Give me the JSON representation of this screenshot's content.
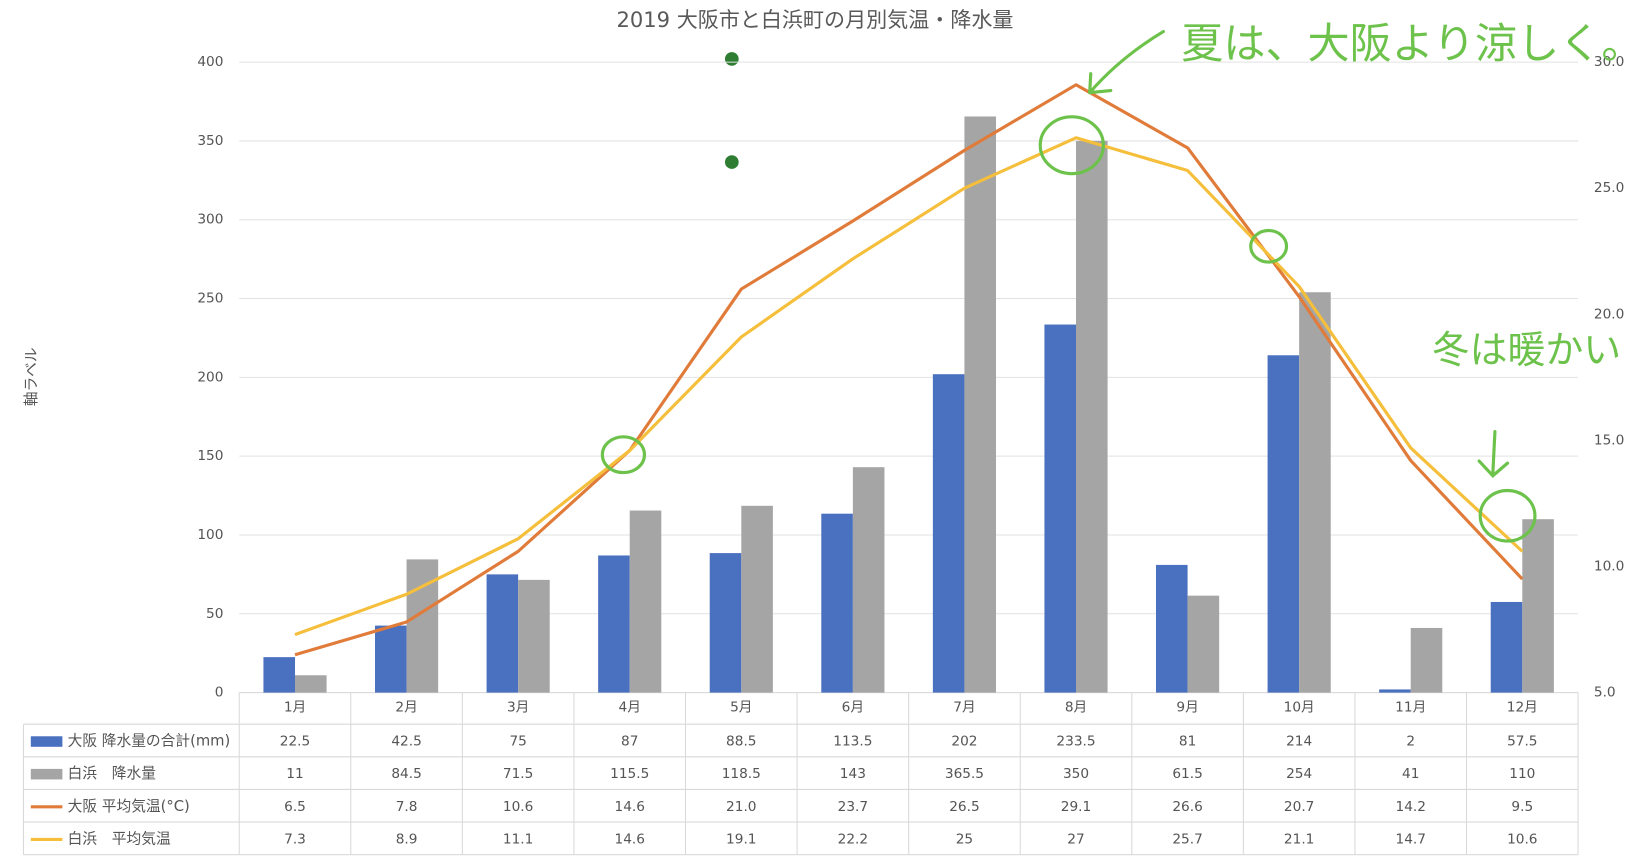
{
  "chart_data": {
    "type": "bar",
    "title": "2019 大阪市と白浜町の月別気温・降水量",
    "y_label": "軸ラベル",
    "categories": [
      "1月",
      "2月",
      "3月",
      "4月",
      "5月",
      "6月",
      "7月",
      "8月",
      "9月",
      "10月",
      "11月",
      "12月"
    ],
    "series": [
      {
        "name": "大阪 降水量の合計(mm)",
        "type": "bar",
        "color": "#4a70c0",
        "values": [
          22.5,
          42.5,
          75,
          87,
          88.5,
          113.5,
          202,
          233.5,
          81,
          214,
          2,
          57.5
        ]
      },
      {
        "name": "白浜　降水量",
        "type": "bar",
        "color": "#a5a5a5",
        "values": [
          11,
          84.5,
          71.5,
          115.5,
          118.5,
          143,
          365.5,
          350,
          61.5,
          254,
          41,
          110
        ]
      },
      {
        "name": "大阪 平均気温(°C)",
        "type": "line",
        "axis": "y2",
        "color": "#e07b39",
        "values": [
          6.5,
          7.8,
          10.6,
          14.6,
          21.0,
          23.7,
          26.5,
          29.1,
          26.6,
          20.7,
          14.2,
          9.5
        ],
        "value_labels": [
          "6.5",
          "7.8",
          "10.6",
          "14.6",
          "21.0",
          "23.7",
          "26.5",
          "29.1",
          "26.6",
          "20.7",
          "14.2",
          "9.5"
        ]
      },
      {
        "name": "白浜　平均気温",
        "type": "line",
        "axis": "y2",
        "color": "#f5bf3c",
        "values": [
          7.3,
          8.9,
          11.1,
          14.6,
          19.1,
          22.2,
          25,
          27,
          25.7,
          21.1,
          14.7,
          10.6
        ]
      }
    ],
    "ylim": [
      0,
      400
    ],
    "yticks": [
      0,
      50,
      100,
      150,
      200,
      250,
      300,
      350,
      400
    ],
    "y2lim": [
      5,
      30
    ],
    "y2ticks": [
      {
        "value": 5,
        "label": "5.0"
      },
      {
        "value": 10,
        "label": "10.0"
      },
      {
        "value": 15,
        "label": "15.0"
      },
      {
        "value": 20,
        "label": "20.0"
      },
      {
        "value": 25,
        "label": "25.0"
      },
      {
        "value": 30,
        "label": "30.0"
      }
    ],
    "grid": true,
    "data_table": true,
    "annotations": [
      "夏は、大阪より涼しく。",
      "冬は暖かい"
    ]
  }
}
